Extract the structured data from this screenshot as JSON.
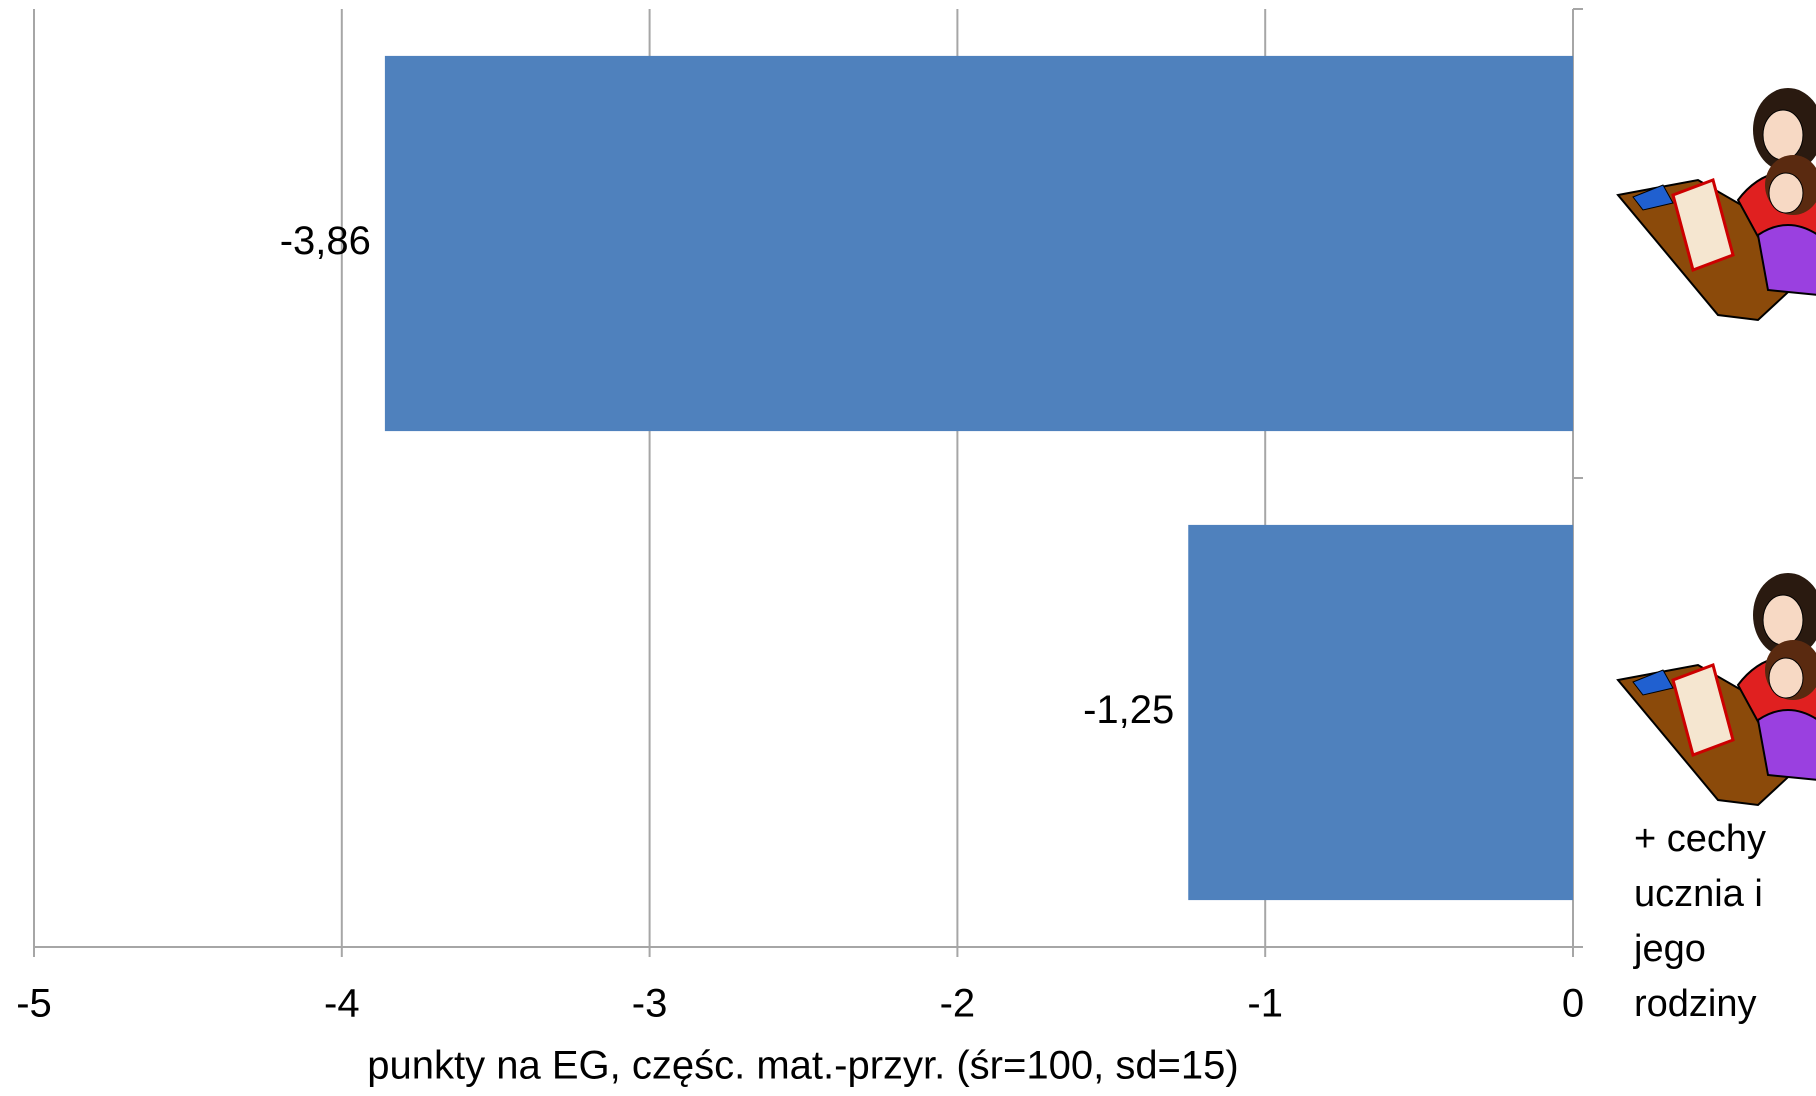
{
  "chart_data": {
    "type": "bar",
    "orientation": "horizontal",
    "categories": [
      null,
      "+ cechy ucznia i jego rodziny"
    ],
    "values": [
      -3.86,
      -1.25
    ],
    "value_labels": [
      "-3,86",
      "-1,25"
    ],
    "color": "#4f81bd",
    "xlabel": "punkty na EG, częśc. mat.-przyr. (śr=100, sd=15)",
    "xlim": [
      -5,
      0
    ],
    "xticks": [
      -5,
      -4,
      -3,
      -2,
      -1,
      0
    ],
    "grid": true
  }
}
